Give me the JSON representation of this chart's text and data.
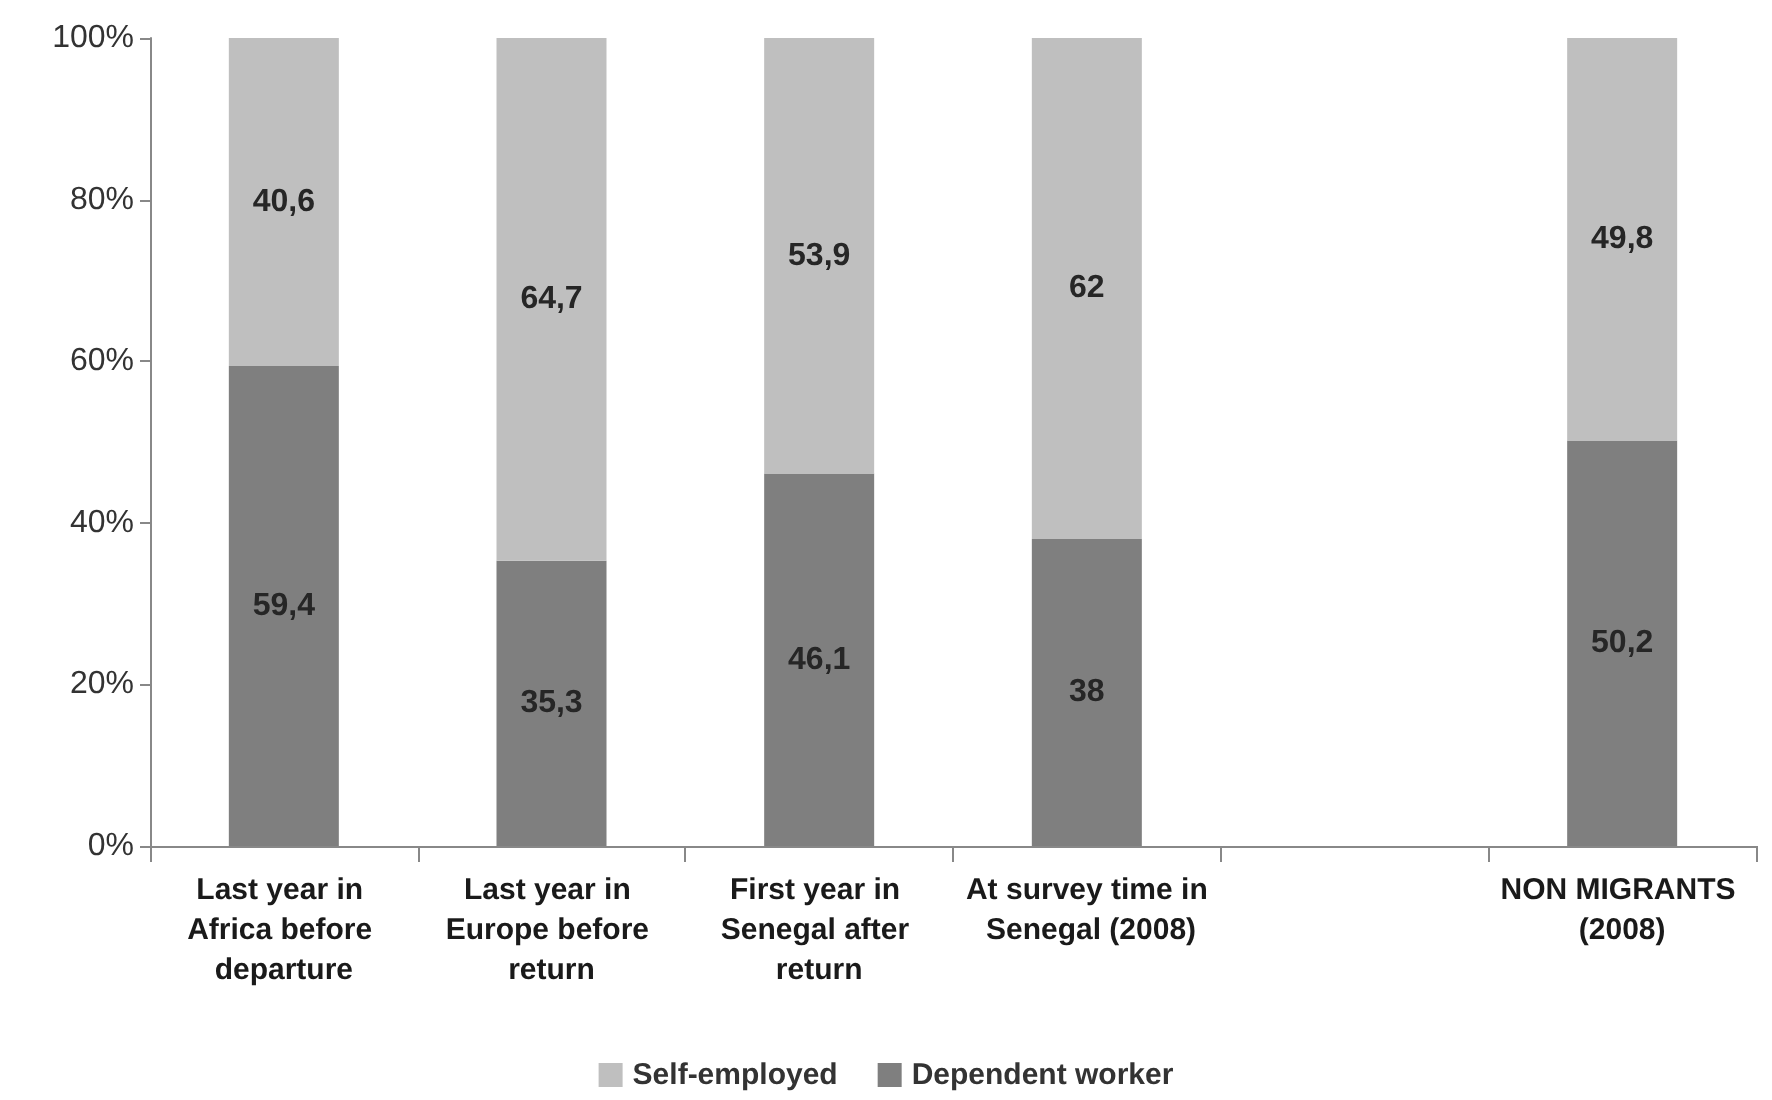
{
  "chart_data": {
    "type": "bar",
    "stacked": true,
    "categories": [
      "Last year in Africa before departure",
      "Last year in Europe before return",
      "First year in Senegal after return",
      "At survey time in Senegal (2008)",
      null,
      "NON MIGRANTS (2008)"
    ],
    "series": [
      {
        "name": "Dependent worker",
        "color": "#7f7f7f",
        "values": [
          59.4,
          35.3,
          46.1,
          38,
          null,
          50.2
        ],
        "value_labels": [
          "59,4",
          "35,3",
          "46,1",
          "38",
          null,
          "50,2"
        ]
      },
      {
        "name": "Self-employed",
        "color": "#bfbfbf",
        "values": [
          40.6,
          64.7,
          53.9,
          62,
          null,
          49.8
        ],
        "value_labels": [
          "40,6",
          "64,7",
          "53,9",
          "62",
          null,
          "49,8"
        ]
      }
    ],
    "ylim": [
      0,
      100
    ],
    "yticks": [
      {
        "value": 0,
        "label": "0%"
      },
      {
        "value": 20,
        "label": "20%"
      },
      {
        "value": 40,
        "label": "40%"
      },
      {
        "value": 60,
        "label": "60%"
      },
      {
        "value": 80,
        "label": "80%"
      },
      {
        "value": 100,
        "label": "100%"
      }
    ],
    "grid": false,
    "legend": "bottom"
  }
}
